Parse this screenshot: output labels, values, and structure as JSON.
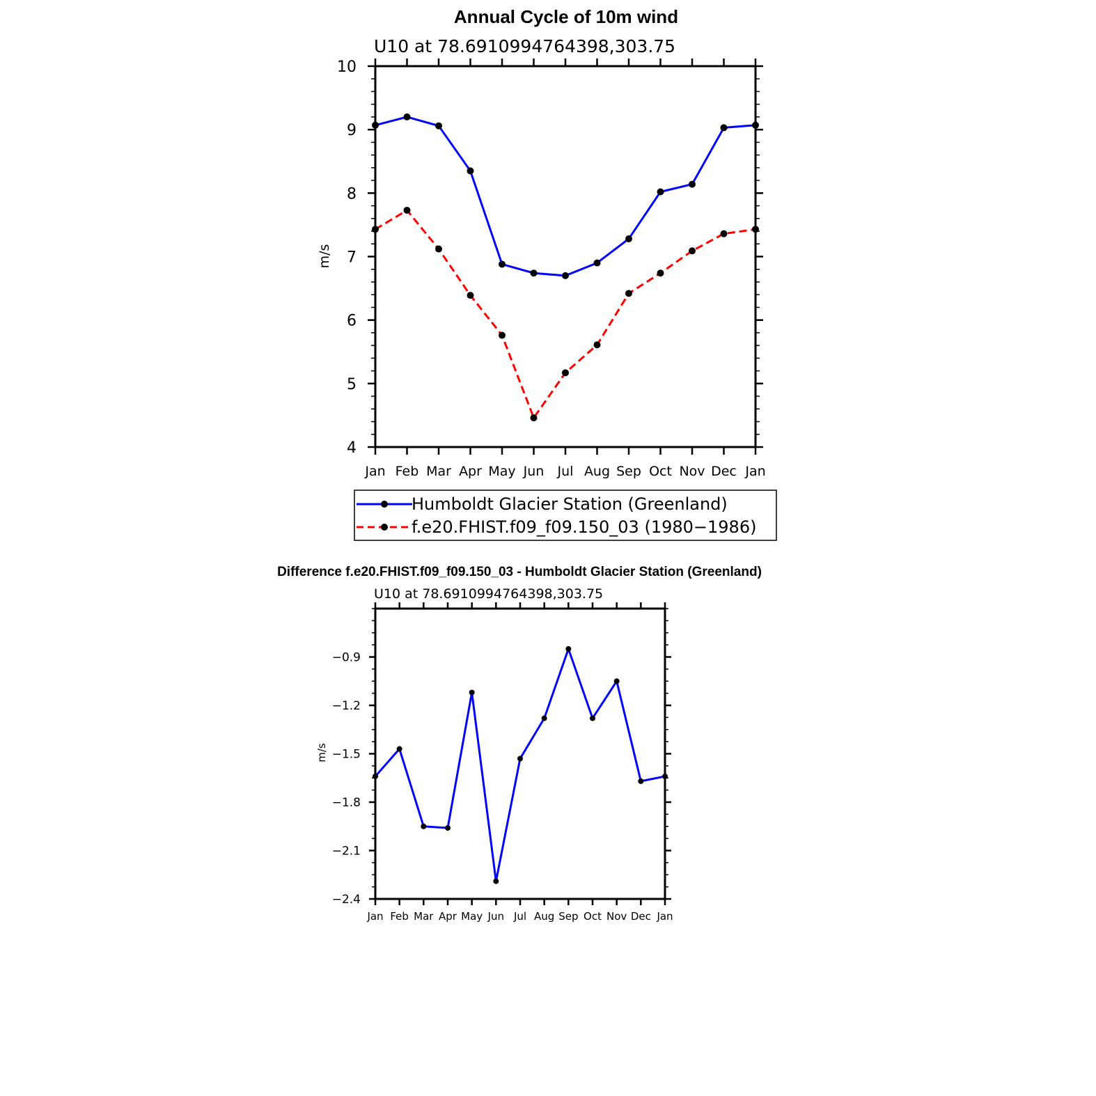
{
  "chart_data": [
    {
      "type": "line",
      "title": "Annual Cycle of 10m wind",
      "subtitle": "U10  at  78.6910994764398,303.75",
      "ylabel": "m/s",
      "xlabel": "",
      "categories": [
        "Jan",
        "Feb",
        "Mar",
        "Apr",
        "May",
        "Jun",
        "Jul",
        "Aug",
        "Sep",
        "Oct",
        "Nov",
        "Dec",
        "Jan"
      ],
      "ylim": [
        4,
        10
      ],
      "yticks": [
        "4",
        "5",
        "6",
        "7",
        "8",
        "9",
        "10"
      ],
      "series": [
        {
          "name": "Humboldt Glacier Station (Greenland)",
          "color": "#0000ff",
          "dash": "solid",
          "values": [
            9.07,
            9.2,
            9.06,
            8.35,
            6.88,
            6.74,
            6.7,
            6.9,
            7.28,
            8.02,
            8.14,
            9.03,
            9.07
          ]
        },
        {
          "name": "f.e20.FHIST.f09_f09.150_03 (1980−1986)",
          "color": "#ff0000",
          "dash": "dashed",
          "values": [
            7.43,
            7.73,
            7.12,
            6.39,
            5.76,
            4.46,
            5.17,
            5.61,
            6.42,
            6.74,
            7.09,
            7.36,
            7.43
          ]
        }
      ],
      "legend": "below"
    },
    {
      "type": "line",
      "title": "Difference f.e20.FHIST.f09_f09.150_03 - Humboldt Glacier Station (Greenland)",
      "subtitle": "U10  at  78.6910994764398,303.75",
      "ylabel": "m/s",
      "xlabel": "",
      "categories": [
        "Jan",
        "Feb",
        "Mar",
        "Apr",
        "May",
        "Jun",
        "Jul",
        "Aug",
        "Sep",
        "Oct",
        "Nov",
        "Dec",
        "Jan"
      ],
      "ylim": [
        -2.4,
        -0.6
      ],
      "yticks": [
        "−0.9",
        "−1.2",
        "−1.5",
        "−1.8",
        "−2.1",
        "−2.4"
      ],
      "series": [
        {
          "color": "#0000ff",
          "dash": "solid",
          "values": [
            -1.64,
            -1.47,
            -1.95,
            -1.96,
            -1.12,
            -2.29,
            -1.53,
            -1.28,
            -0.85,
            -1.28,
            -1.05,
            -1.67,
            -1.64
          ]
        }
      ]
    }
  ]
}
